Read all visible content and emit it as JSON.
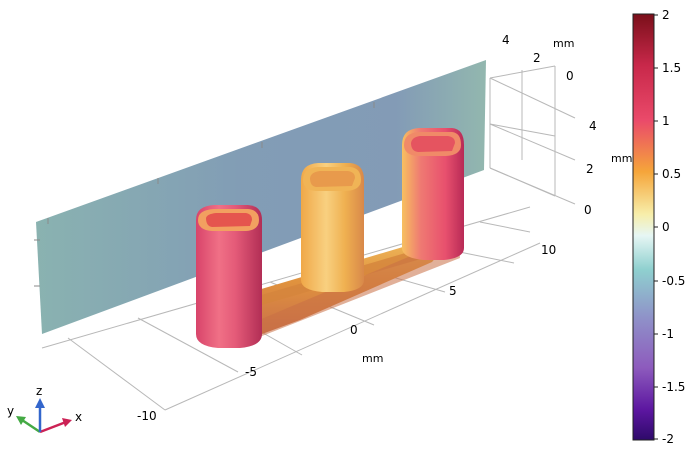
{
  "axes_3d": {
    "x_ticks": [
      "-10",
      "-5",
      "0",
      "5",
      "10"
    ],
    "y_ticks": [
      "4",
      "2",
      "0"
    ],
    "z_ticks": [
      "4",
      "2",
      "0"
    ],
    "x_unit": "mm",
    "y_unit": "mm",
    "z_unit": "mm"
  },
  "triad": {
    "x": "x",
    "y": "y",
    "z": "z"
  },
  "colorbar": {
    "ticks": [
      "2",
      "1.5",
      "1",
      "0.5",
      "0",
      "-0.5",
      "-1",
      "-1.5",
      "-2"
    ],
    "range": [
      -2,
      2
    ],
    "stops": [
      "#7a0f1a",
      "#c8284a",
      "#ea4a6a",
      "#f5a53a",
      "#f7eeaa",
      "#e6f6f4",
      "#8fd0cf",
      "#8f8ec8",
      "#8d5bbd",
      "#5c16a0",
      "#2e0a6a"
    ]
  },
  "colors": {
    "plane": "#7f9cb0",
    "plane_edge": "#8fb8b0",
    "object_hot": "#e8506a",
    "object_warm": "#f1a94a",
    "axis_x": "#cc2255",
    "axis_y": "#44aa44",
    "axis_z": "#3366cc"
  }
}
